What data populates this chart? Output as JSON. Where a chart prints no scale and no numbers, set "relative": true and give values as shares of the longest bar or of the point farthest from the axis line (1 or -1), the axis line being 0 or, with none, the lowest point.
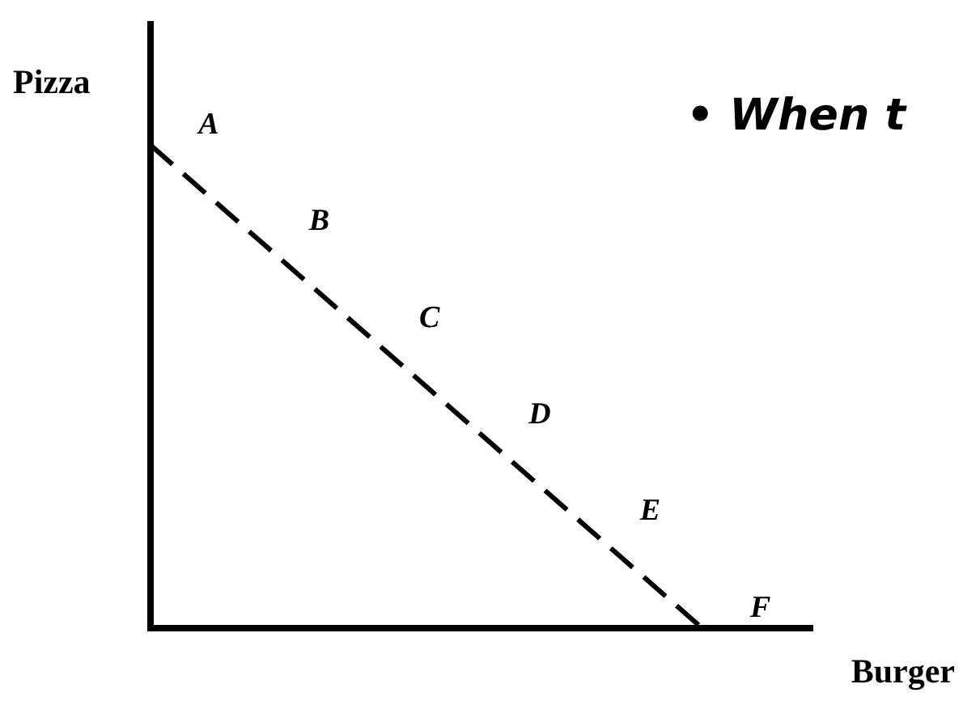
{
  "chart_data": {
    "type": "line",
    "relative": true,
    "xlabel": "Burger",
    "ylabel": "Pizza",
    "categories": [
      null,
      null,
      null,
      null,
      null,
      null,
      null
    ],
    "series": [
      {
        "color": "#000000",
        "values": [
          1,
          0.8,
          0.6,
          0.4,
          0.2,
          0,
          null
        ]
      }
    ],
    "line_style": "dashed",
    "marker": "none",
    "grid": false,
    "legend": false,
    "annotations": [
      "A",
      "B",
      "C",
      "D",
      "E",
      "F",
      "• When t"
    ]
  }
}
